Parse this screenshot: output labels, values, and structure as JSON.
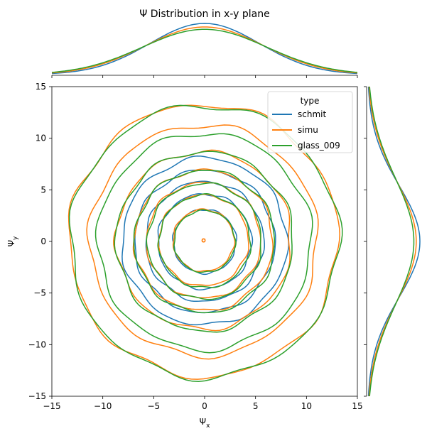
{
  "chart_data": {
    "type": "kde-joint",
    "title": "Ψ Distribution in x-y plane",
    "xlabel": "Ψ",
    "xlabel_sub": "x",
    "ylabel": "Ψ",
    "ylabel_sub": "y",
    "xlim": [
      -15,
      15
    ],
    "ylim": [
      -15,
      15
    ],
    "xticks": [
      -15,
      -10,
      -5,
      0,
      5,
      10,
      15
    ],
    "yticks": [
      -15,
      -10,
      -5,
      0,
      5,
      10,
      15
    ],
    "grid": false,
    "legend": {
      "title": "type",
      "placement": "top-right",
      "entries": [
        "schmit",
        "simu",
        "glass_009"
      ]
    },
    "series": [
      {
        "name": "schmit",
        "color": "#1f77b4",
        "contour_radii": [
          3.1,
          4.6,
          5.8,
          6.9,
          8.1
        ],
        "marginal_sigma": 5.4
      },
      {
        "name": "simu",
        "color": "#ff7f0e",
        "contour_radii": [
          0.15,
          3.0,
          4.4,
          5.6,
          6.8,
          8.6,
          11.2,
          13.2
        ],
        "marginal_sigma": 5.8
      },
      {
        "name": "glass_009",
        "color": "#2ca02c",
        "contour_radii": [
          3.0,
          4.5,
          5.6,
          6.9,
          8.7,
          10.5,
          13.2
        ],
        "marginal_sigma": 6.1
      }
    ]
  }
}
